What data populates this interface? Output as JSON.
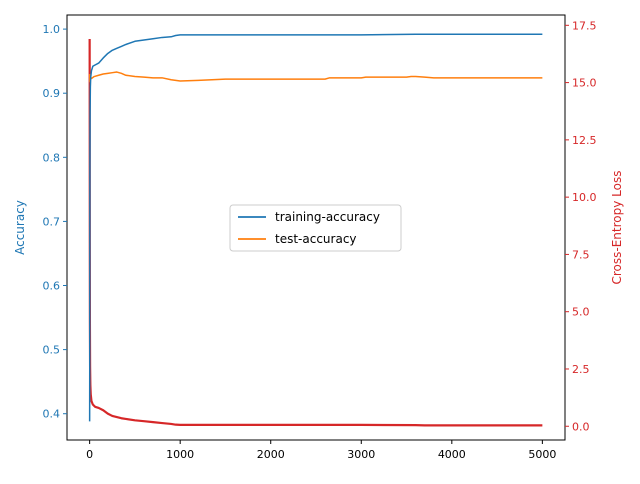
{
  "chart_data": {
    "type": "line",
    "x_axis": {
      "lim": [
        -250,
        5250
      ],
      "ticks": [
        0,
        1000,
        2000,
        3000,
        4000,
        5000
      ],
      "tick_labels": [
        "0",
        "1000",
        "2000",
        "3000",
        "4000",
        "5000"
      ],
      "label": ""
    },
    "y_left": {
      "label": "Accuracy",
      "color": "#1f77b4",
      "lim": [
        0.359,
        1.022
      ],
      "ticks": [
        0.4,
        0.5,
        0.6,
        0.7,
        0.8,
        0.9,
        1.0
      ],
      "tick_labels": [
        "0.4",
        "0.5",
        "0.6",
        "0.7",
        "0.8",
        "0.9",
        "1.0"
      ]
    },
    "y_right": {
      "label": "Cross-Entropy Loss",
      "color": "#d62728",
      "lim": [
        -0.6,
        17.95
      ],
      "ticks": [
        0.0,
        2.5,
        5.0,
        7.5,
        10.0,
        12.5,
        15.0,
        17.5
      ],
      "tick_labels": [
        "0.0",
        "2.5",
        "5.0",
        "7.5",
        "10.0",
        "12.5",
        "15.0",
        "17.5"
      ]
    },
    "legend": {
      "position": "center"
    },
    "grid": false,
    "series": [
      {
        "name": "training-accuracy",
        "axis": "left",
        "color": "#1f77b4",
        "x": [
          0,
          1,
          2,
          3,
          5,
          8,
          12,
          20,
          35,
          60,
          100,
          150,
          200,
          250,
          300,
          350,
          400,
          500,
          600,
          700,
          800,
          900,
          950,
          1000,
          2000,
          3000,
          3600,
          3700,
          4000,
          5000
        ],
        "y": [
          0.388,
          0.47,
          0.62,
          0.78,
          0.87,
          0.91,
          0.925,
          0.935,
          0.942,
          0.944,
          0.947,
          0.955,
          0.962,
          0.967,
          0.97,
          0.973,
          0.976,
          0.981,
          0.983,
          0.985,
          0.987,
          0.988,
          0.99,
          0.991,
          0.991,
          0.991,
          0.992,
          0.992,
          0.992,
          0.992
        ]
      },
      {
        "name": "test-accuracy",
        "axis": "left",
        "color": "#ff7f0e",
        "x": [
          0,
          2,
          5,
          10,
          20,
          50,
          100,
          150,
          200,
          250,
          300,
          350,
          400,
          500,
          600,
          700,
          800,
          900,
          1000,
          1200,
          1500,
          2000,
          2600,
          2650,
          3000,
          3050,
          3500,
          3550,
          3600,
          3700,
          3800,
          4000,
          5000
        ],
        "y": [
          0.93,
          0.918,
          0.921,
          0.925,
          0.923,
          0.926,
          0.928,
          0.93,
          0.931,
          0.932,
          0.933,
          0.931,
          0.928,
          0.926,
          0.925,
          0.924,
          0.924,
          0.921,
          0.919,
          0.92,
          0.922,
          0.922,
          0.922,
          0.924,
          0.924,
          0.925,
          0.925,
          0.926,
          0.926,
          0.925,
          0.924,
          0.924,
          0.924
        ]
      },
      {
        "name": "Cross-Entropy Loss",
        "axis": "right",
        "color": "#d62728",
        "x": [
          0,
          1,
          2,
          3,
          5,
          8,
          12,
          20,
          35,
          60,
          100,
          150,
          200,
          250,
          300,
          350,
          400,
          500,
          600,
          700,
          800,
          900,
          950,
          1000,
          2000,
          3000,
          3600,
          3700,
          4000,
          5000
        ],
        "y": [
          16.9,
          13.0,
          8.0,
          4.5,
          2.6,
          1.8,
          1.4,
          1.1,
          0.95,
          0.85,
          0.8,
          0.7,
          0.55,
          0.45,
          0.4,
          0.35,
          0.32,
          0.26,
          0.22,
          0.18,
          0.14,
          0.1,
          0.07,
          0.06,
          0.06,
          0.06,
          0.05,
          0.04,
          0.04,
          0.04
        ]
      }
    ]
  }
}
